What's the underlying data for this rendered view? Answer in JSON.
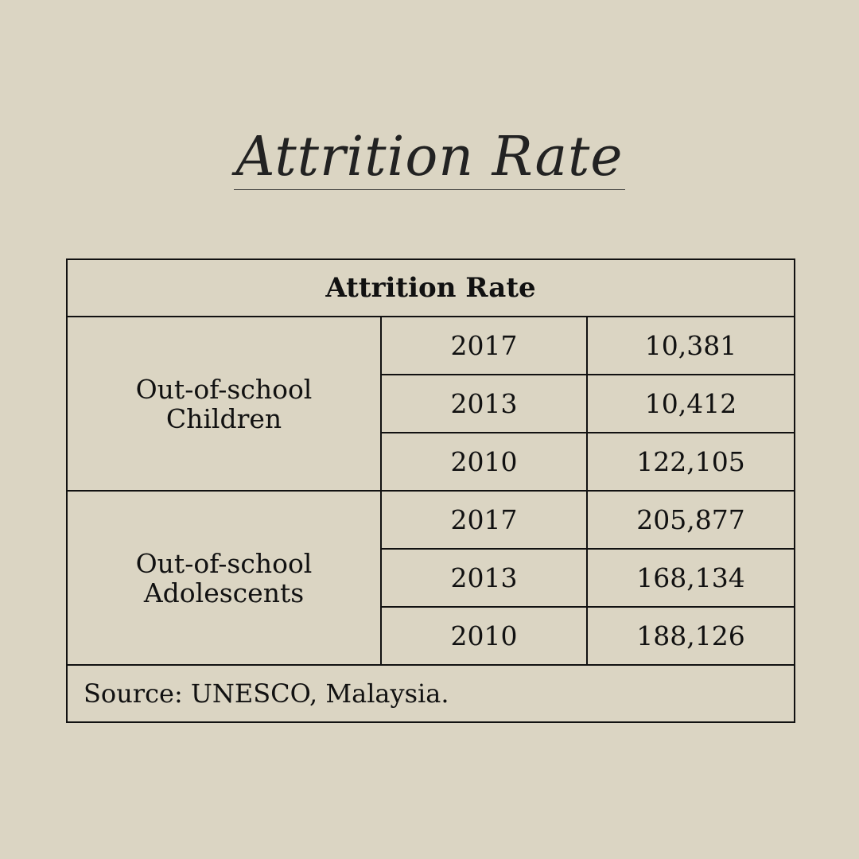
{
  "page": {
    "title": "Attrition Rate"
  },
  "table": {
    "header": "Attrition Rate",
    "groups": [
      {
        "label_line1": "Out-of-school",
        "label_line2": "Children",
        "rows": [
          {
            "year": "2017",
            "value": "10,381"
          },
          {
            "year": "2013",
            "value": "10,412"
          },
          {
            "year": "2010",
            "value": "122,105"
          }
        ]
      },
      {
        "label_line1": "Out-of-school",
        "label_line2": "Adolescents",
        "rows": [
          {
            "year": "2017",
            "value": "205,877"
          },
          {
            "year": "2013",
            "value": "168,134"
          },
          {
            "year": "2010",
            "value": "188,126"
          }
        ]
      }
    ],
    "source": "Source: UNESCO, Malaysia."
  },
  "colors": {
    "background": "#dbd5c3",
    "text": "#111111",
    "border": "#111111"
  }
}
